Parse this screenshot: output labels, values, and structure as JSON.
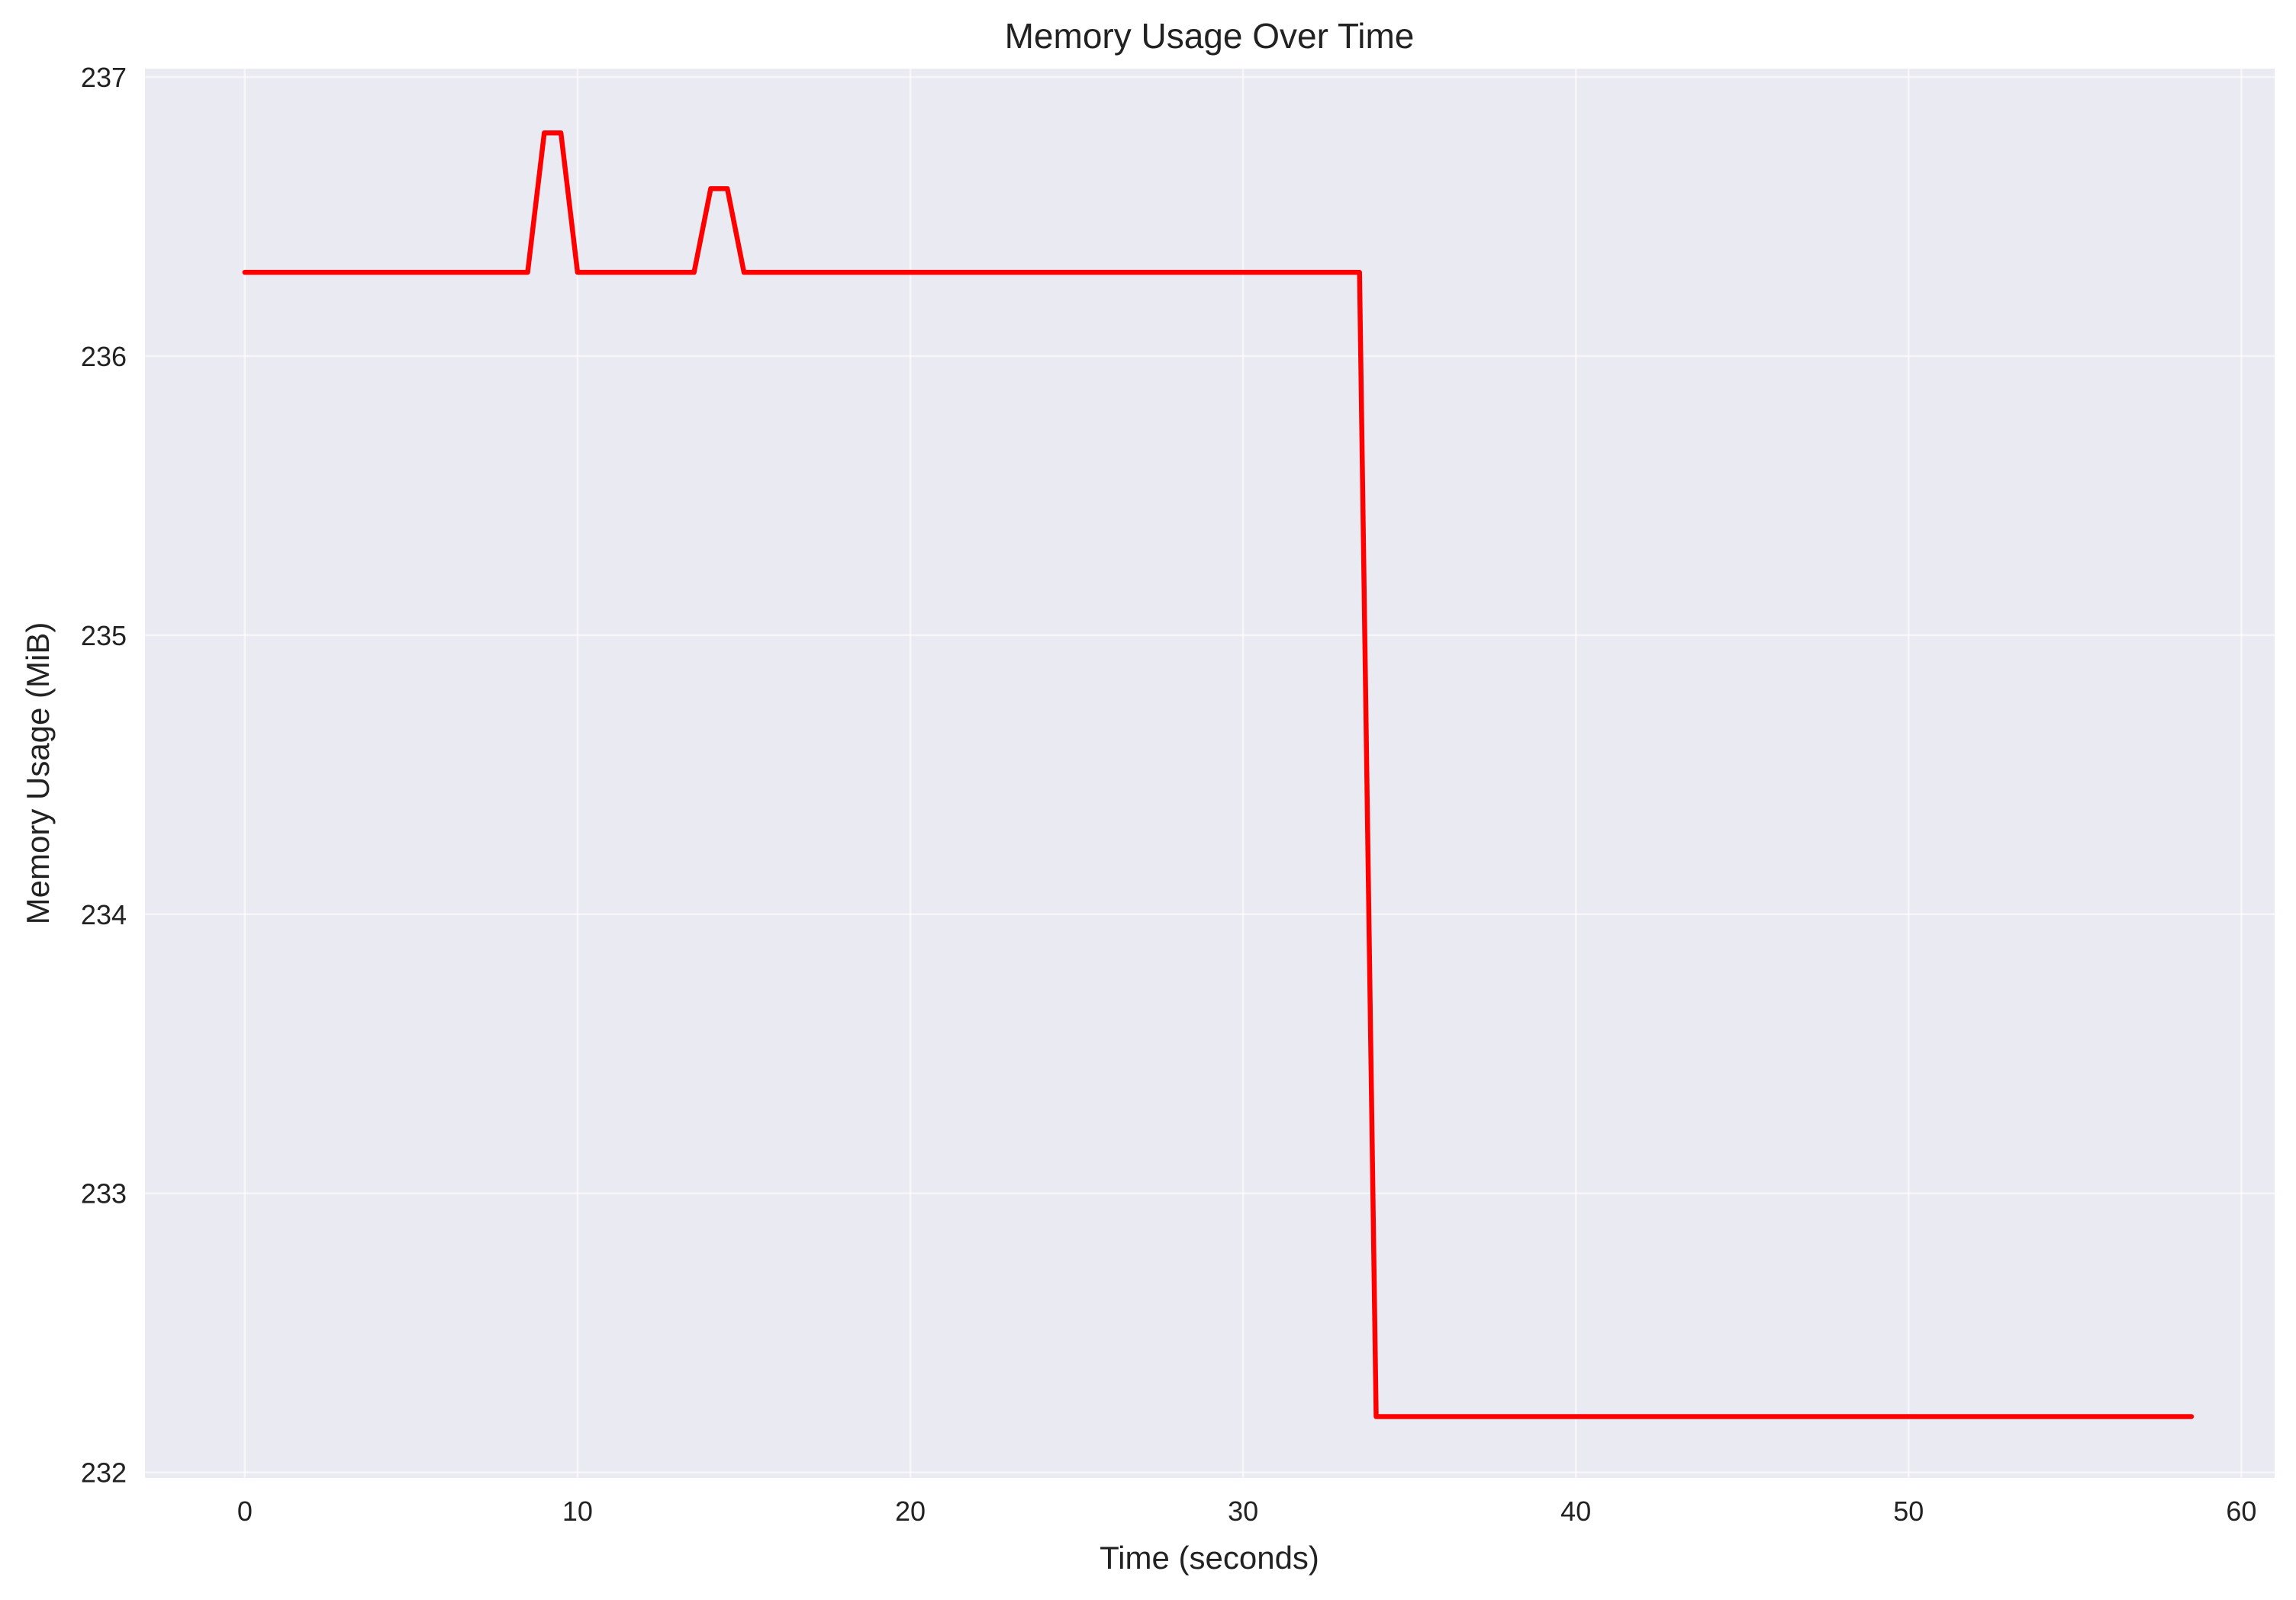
{
  "chart_data": {
    "type": "line",
    "title": "Memory Usage Over Time",
    "xlabel": "Time (seconds)",
    "ylabel": "Memory Usage (MiB)",
    "xlim": [
      -3,
      61
    ],
    "ylim": [
      231.98,
      237.03
    ],
    "xticks": [
      0,
      10,
      20,
      30,
      40,
      50,
      60
    ],
    "yticks": [
      232,
      233,
      234,
      235,
      236,
      237
    ],
    "grid": true,
    "legend": "none",
    "colors": {
      "series": "#ff0000",
      "background": "#eaeaf2",
      "grid": "#ffffff"
    },
    "series": [
      {
        "color": "#ff0000",
        "x": [
          0,
          8.5,
          9.0,
          9.5,
          10.0,
          13.5,
          14.0,
          14.5,
          15.0,
          33.5,
          34.0,
          58.5
        ],
        "y": [
          236.3,
          236.3,
          236.8,
          236.8,
          236.3,
          236.3,
          236.6,
          236.6,
          236.3,
          236.3,
          232.2,
          232.2
        ]
      }
    ]
  }
}
